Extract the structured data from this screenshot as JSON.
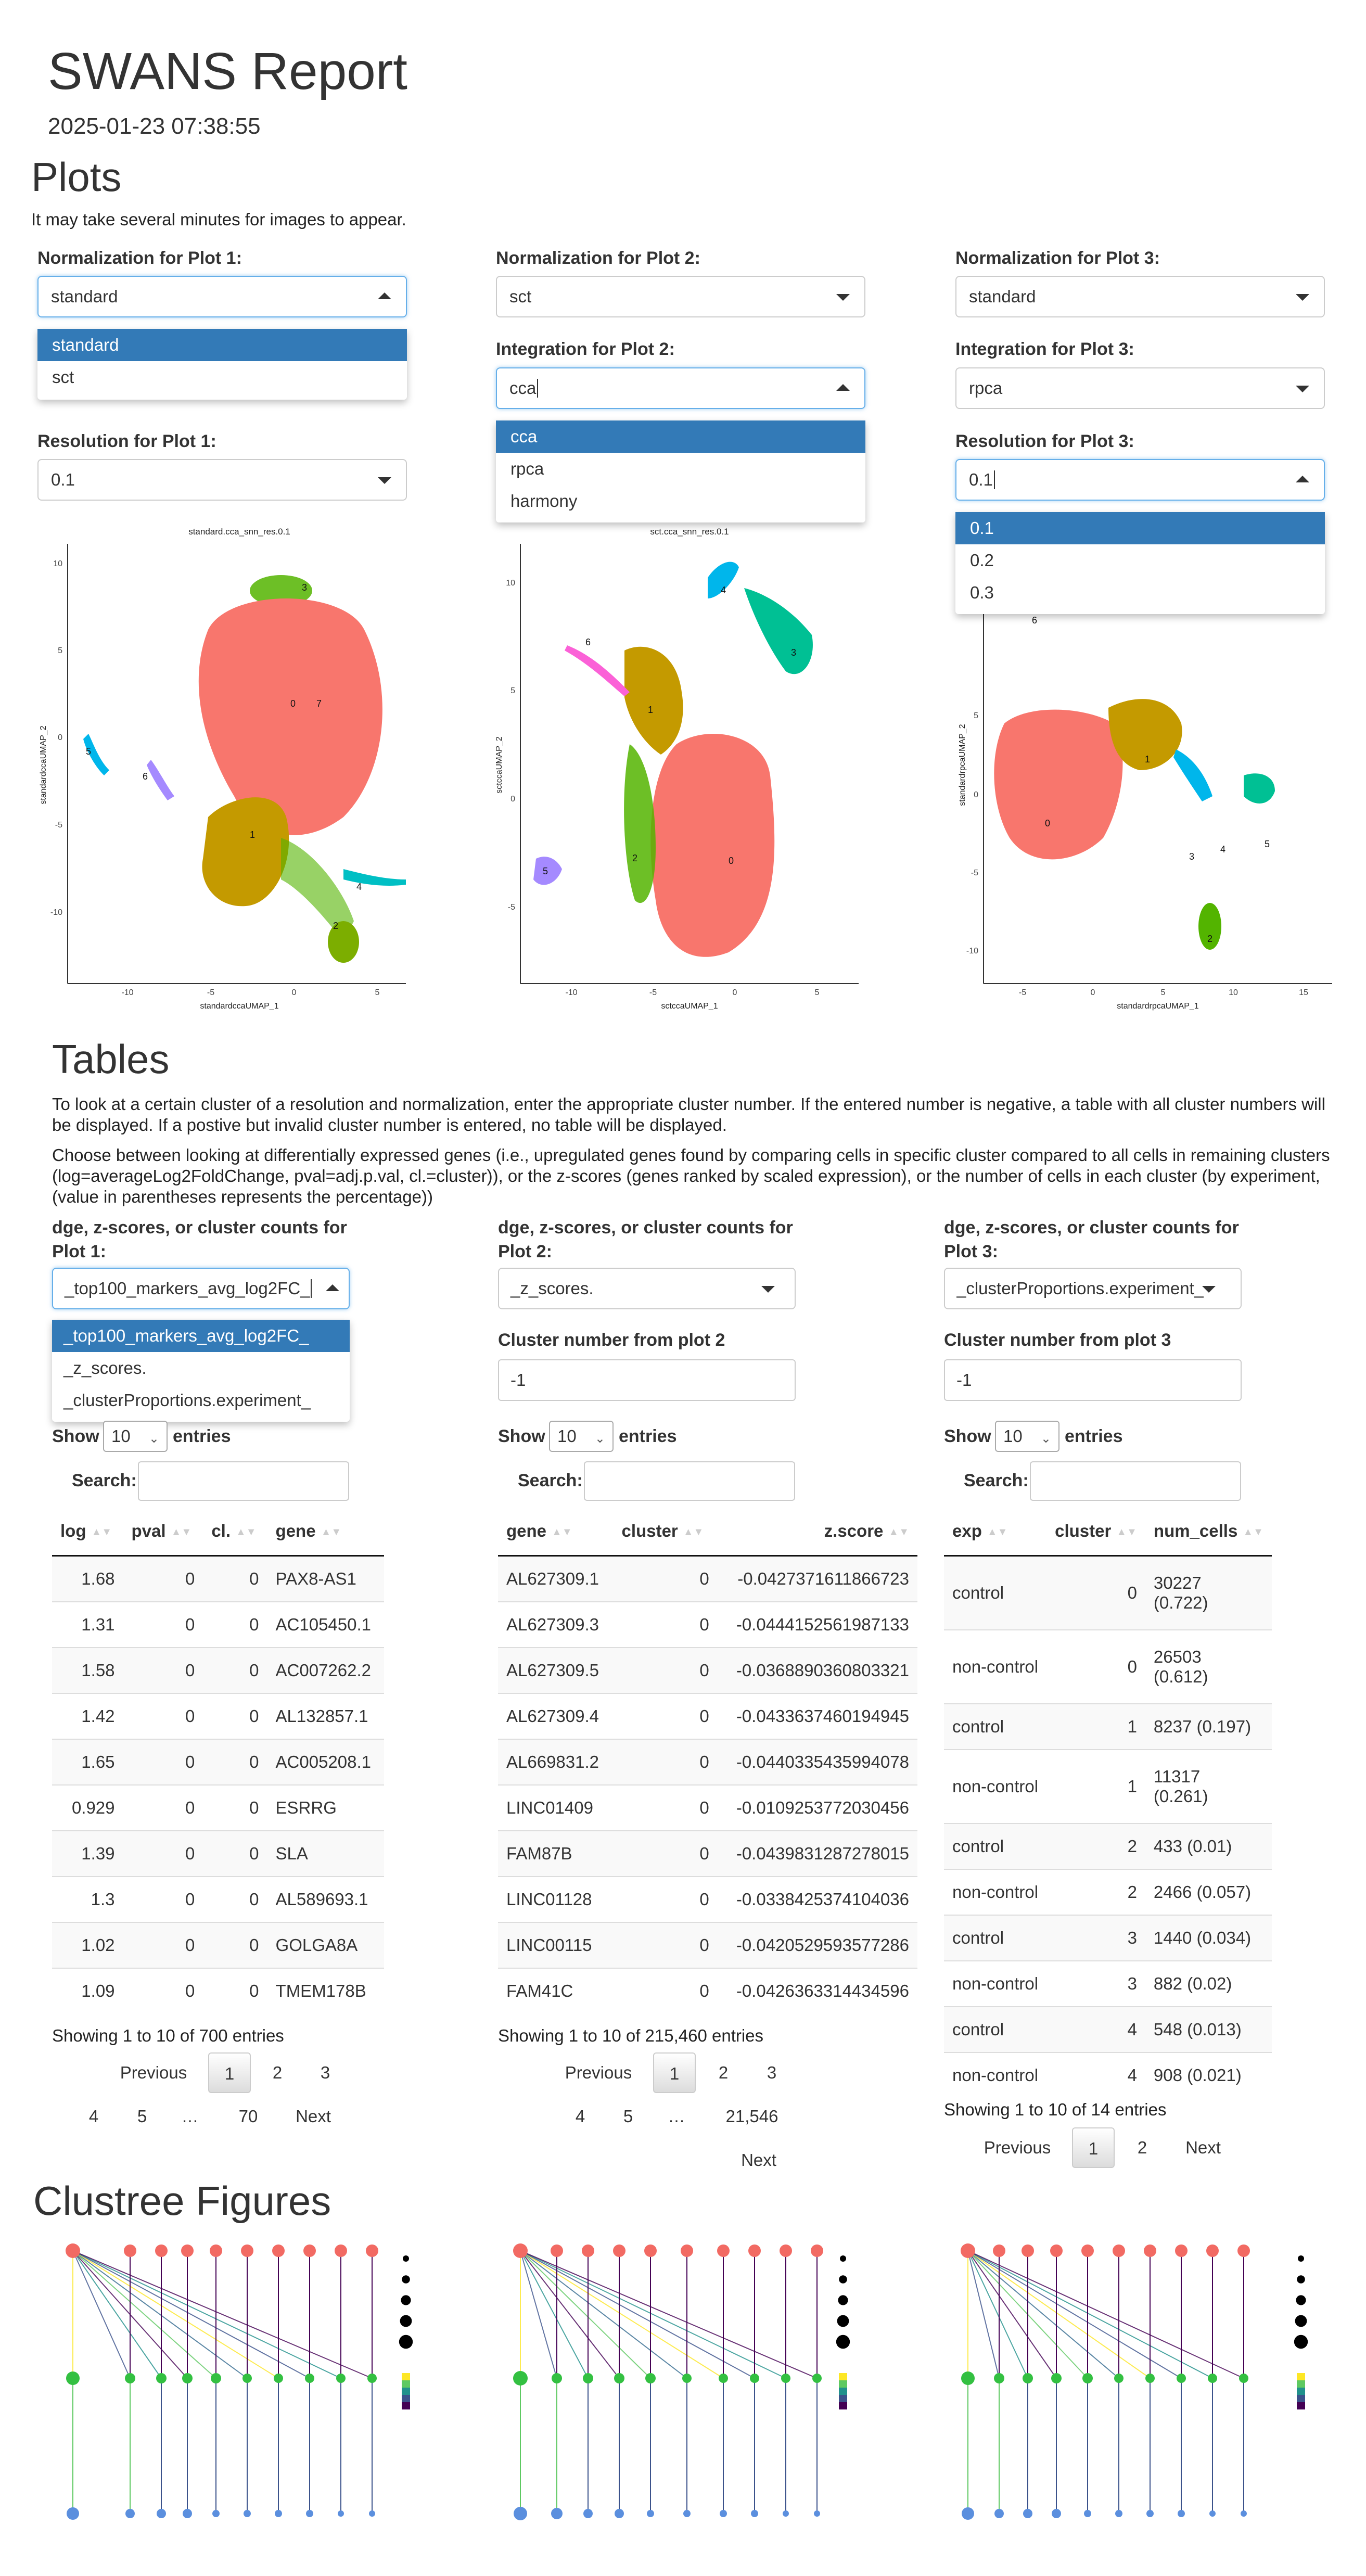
{
  "report": {
    "title": "SWANS Report",
    "timestamp": "2025-01-23 07:38:55"
  },
  "plots": {
    "heading": "Plots",
    "note": "It may take several minutes for images to appear.",
    "plot1": {
      "norm_label": "Normalization for Plot 1:",
      "norm_value": "standard",
      "norm_options": [
        "standard",
        "sct"
      ],
      "res_label": "Resolution for Plot 1:",
      "res_value": "0.1",
      "umap_title": "standard.cca_snn_res.0.1",
      "x_label": "standardccaUMAP_1",
      "y_label": "standardccaUMAP_2",
      "x_ticks": [
        "-10",
        "-5",
        "0",
        "5"
      ],
      "y_ticks": [
        "10",
        "5",
        "0",
        "-5",
        "-10"
      ],
      "cluster_labels": [
        "0",
        "7",
        "1",
        "2",
        "3",
        "4",
        "5",
        "6"
      ]
    },
    "plot2": {
      "norm_label": "Normalization for Plot 2:",
      "norm_value": "sct",
      "int_label": "Integration for Plot 2:",
      "int_value": "cca",
      "int_options": [
        "cca",
        "rpca",
        "harmony"
      ],
      "umap_title": "sct.cca_snn_res.0.1",
      "x_label": "sctccaUMAP_1",
      "y_label": "sctccaUMAP_2",
      "x_ticks": [
        "-10",
        "-5",
        "0",
        "5"
      ],
      "y_ticks": [
        "10",
        "5",
        "0",
        "-5"
      ],
      "cluster_labels": [
        "0",
        "1",
        "2",
        "3",
        "4",
        "5",
        "6"
      ]
    },
    "plot3": {
      "norm_label": "Normalization for Plot 3:",
      "norm_value": "standard",
      "int_label": "Integration for Plot 3:",
      "int_value": "rpca",
      "res_label": "Resolution for Plot 3:",
      "res_value": "0.1",
      "res_options": [
        "0.1",
        "0.2",
        "0.3"
      ],
      "x_label": "standardrpcaUMAP_1",
      "y_label": "standardrpcaUMAP_2",
      "x_ticks": [
        "-5",
        "0",
        "5",
        "10",
        "15"
      ],
      "y_ticks": [
        "5",
        "0",
        "-5",
        "-10"
      ],
      "cluster_labels": [
        "0",
        "1",
        "2",
        "3",
        "4",
        "5",
        "6"
      ]
    }
  },
  "tables": {
    "heading": "Tables",
    "para1": "To look at a certain cluster of a resolution and normalization, enter the appropriate cluster number. If the entered number is negative, a table with all cluster numbers will be displayed. If a postive but invalid cluster number is entered, no table will be displayed.",
    "para2": "Choose between looking at differentially expressed genes (i.e., upregulated genes found by comparing cells in specific cluster compared to all cells in remaining clusters (log=averageLog2FoldChange, pval=adj.p.val, cl.=cluster)), or the z-scores (genes ranked by scaled expression), or the number of cells in each cluster (by experiment, (value in parentheses represents the percentage))",
    "show_label": "Show",
    "entries_label": "entries",
    "search_label": "Search:",
    "page_size": "10",
    "previous": "Previous",
    "next": "Next",
    "ellipsis": "…",
    "t1": {
      "sel_label_a": "dge, z-scores, or cluster counts for",
      "sel_label_b": "Plot 1:",
      "sel_value": "_top100_markers_avg_log2FC_",
      "sel_options": [
        "_top100_markers_avg_log2FC_",
        "_z_scores.",
        "_clusterProportions.experiment_"
      ],
      "columns": [
        "log",
        "pval",
        "cl.",
        "gene"
      ],
      "rows": [
        [
          "1.68",
          "0",
          "0",
          "PAX8-AS1"
        ],
        [
          "1.31",
          "0",
          "0",
          "AC105450.1"
        ],
        [
          "1.58",
          "0",
          "0",
          "AC007262.2"
        ],
        [
          "1.42",
          "0",
          "0",
          "AL132857.1"
        ],
        [
          "1.65",
          "0",
          "0",
          "AC005208.1"
        ],
        [
          "0.929",
          "0",
          "0",
          "ESRRG"
        ],
        [
          "1.39",
          "0",
          "0",
          "SLA"
        ],
        [
          "1.3",
          "0",
          "0",
          "AL589693.1"
        ],
        [
          "1.02",
          "0",
          "0",
          "GOLGA8A"
        ],
        [
          "1.09",
          "0",
          "0",
          "TMEM178B"
        ]
      ],
      "info": "Showing 1 to 10 of 700 entries",
      "pages": [
        "1",
        "2",
        "3",
        "4",
        "5",
        "70"
      ]
    },
    "t2": {
      "sel_label_a": "dge, z-scores, or cluster counts for",
      "sel_label_b": "Plot 2:",
      "sel_value": "_z_scores.",
      "cluster_label": "Cluster number from plot 2",
      "cluster_value": "-1",
      "columns": [
        "gene",
        "cluster",
        "z.score"
      ],
      "rows": [
        [
          "AL627309.1",
          "0",
          "-0.0427371611866723"
        ],
        [
          "AL627309.3",
          "0",
          "-0.0444152561987133"
        ],
        [
          "AL627309.5",
          "0",
          "-0.0368890360803321"
        ],
        [
          "AL627309.4",
          "0",
          "-0.0433637460194945"
        ],
        [
          "AL669831.2",
          "0",
          "-0.0440335435994078"
        ],
        [
          "LINC01409",
          "0",
          "-0.0109253772030456"
        ],
        [
          "FAM87B",
          "0",
          "-0.0439831287278015"
        ],
        [
          "LINC01128",
          "0",
          "-0.0338425374104036"
        ],
        [
          "LINC00115",
          "0",
          "-0.0420529593577286"
        ],
        [
          "FAM41C",
          "0",
          "-0.0426363314434596"
        ]
      ],
      "info": "Showing 1 to 10 of 215,460 entries",
      "pages": [
        "1",
        "2",
        "3",
        "4",
        "5",
        "21,546"
      ]
    },
    "t3": {
      "sel_label_a": "dge, z-scores, or cluster counts for",
      "sel_label_b": "Plot 3:",
      "sel_value": "_clusterProportions.experiment_",
      "cluster_label": "Cluster number from plot 3",
      "cluster_value": "-1",
      "columns": [
        "exp",
        "cluster",
        "num_cells"
      ],
      "rows": [
        [
          "control",
          "0",
          "30227",
          "(0.722)"
        ],
        [
          "non-control",
          "0",
          "26503",
          "(0.612)"
        ],
        [
          "control",
          "1",
          "8237 (0.197)",
          ""
        ],
        [
          "non-control",
          "1",
          "11317",
          "(0.261)"
        ],
        [
          "control",
          "2",
          "433 (0.01)",
          ""
        ],
        [
          "non-control",
          "2",
          "2466 (0.057)",
          ""
        ],
        [
          "control",
          "3",
          "1440 (0.034)",
          ""
        ],
        [
          "non-control",
          "3",
          "882 (0.02)",
          ""
        ],
        [
          "control",
          "4",
          "548 (0.013)",
          ""
        ],
        [
          "non-control",
          "4",
          "908 (0.021)",
          ""
        ]
      ],
      "info": "Showing 1 to 10 of 14 entries",
      "pages": [
        "1",
        "2"
      ]
    }
  },
  "clustree": {
    "heading": "Clustree Figures"
  },
  "colors": {
    "accent": "#337ab7",
    "focus": "#66afe9",
    "cluster0": "#f8766d",
    "cluster1": "#c49a00",
    "cluster2": "#53b400",
    "cluster3": "#00c094",
    "cluster4": "#00b6eb",
    "cluster5": "#a58aff",
    "cluster6": "#fb61d7",
    "clustree_top": "#f26a63",
    "clustree_mid": "#33c041",
    "clustree_bot": "#5b8fde"
  }
}
